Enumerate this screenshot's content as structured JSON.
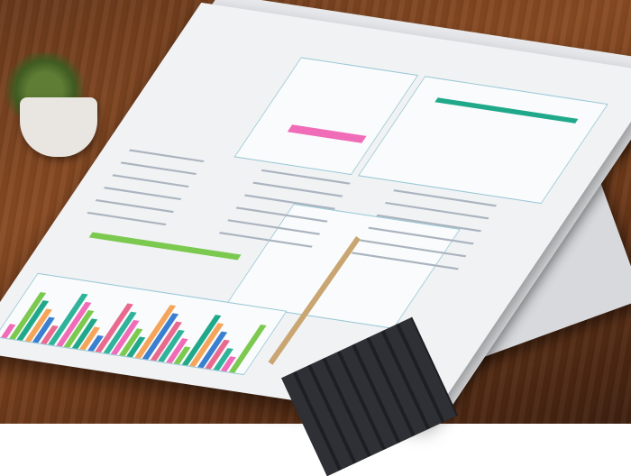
{
  "scene": {
    "description_colors": {
      "wood": "#7a4220",
      "paper": "#f1f2f4",
      "teal": "#1fa98a",
      "pink": "#f06bb8",
      "blue": "#3a7fd0",
      "green": "#7bc94f"
    },
    "bar_colors": [
      "#f06bb8",
      "#7bc94f",
      "#1fa98a",
      "#f5a55a",
      "#3a7fd0",
      "#e86a8f",
      "#2fb39a"
    ]
  }
}
